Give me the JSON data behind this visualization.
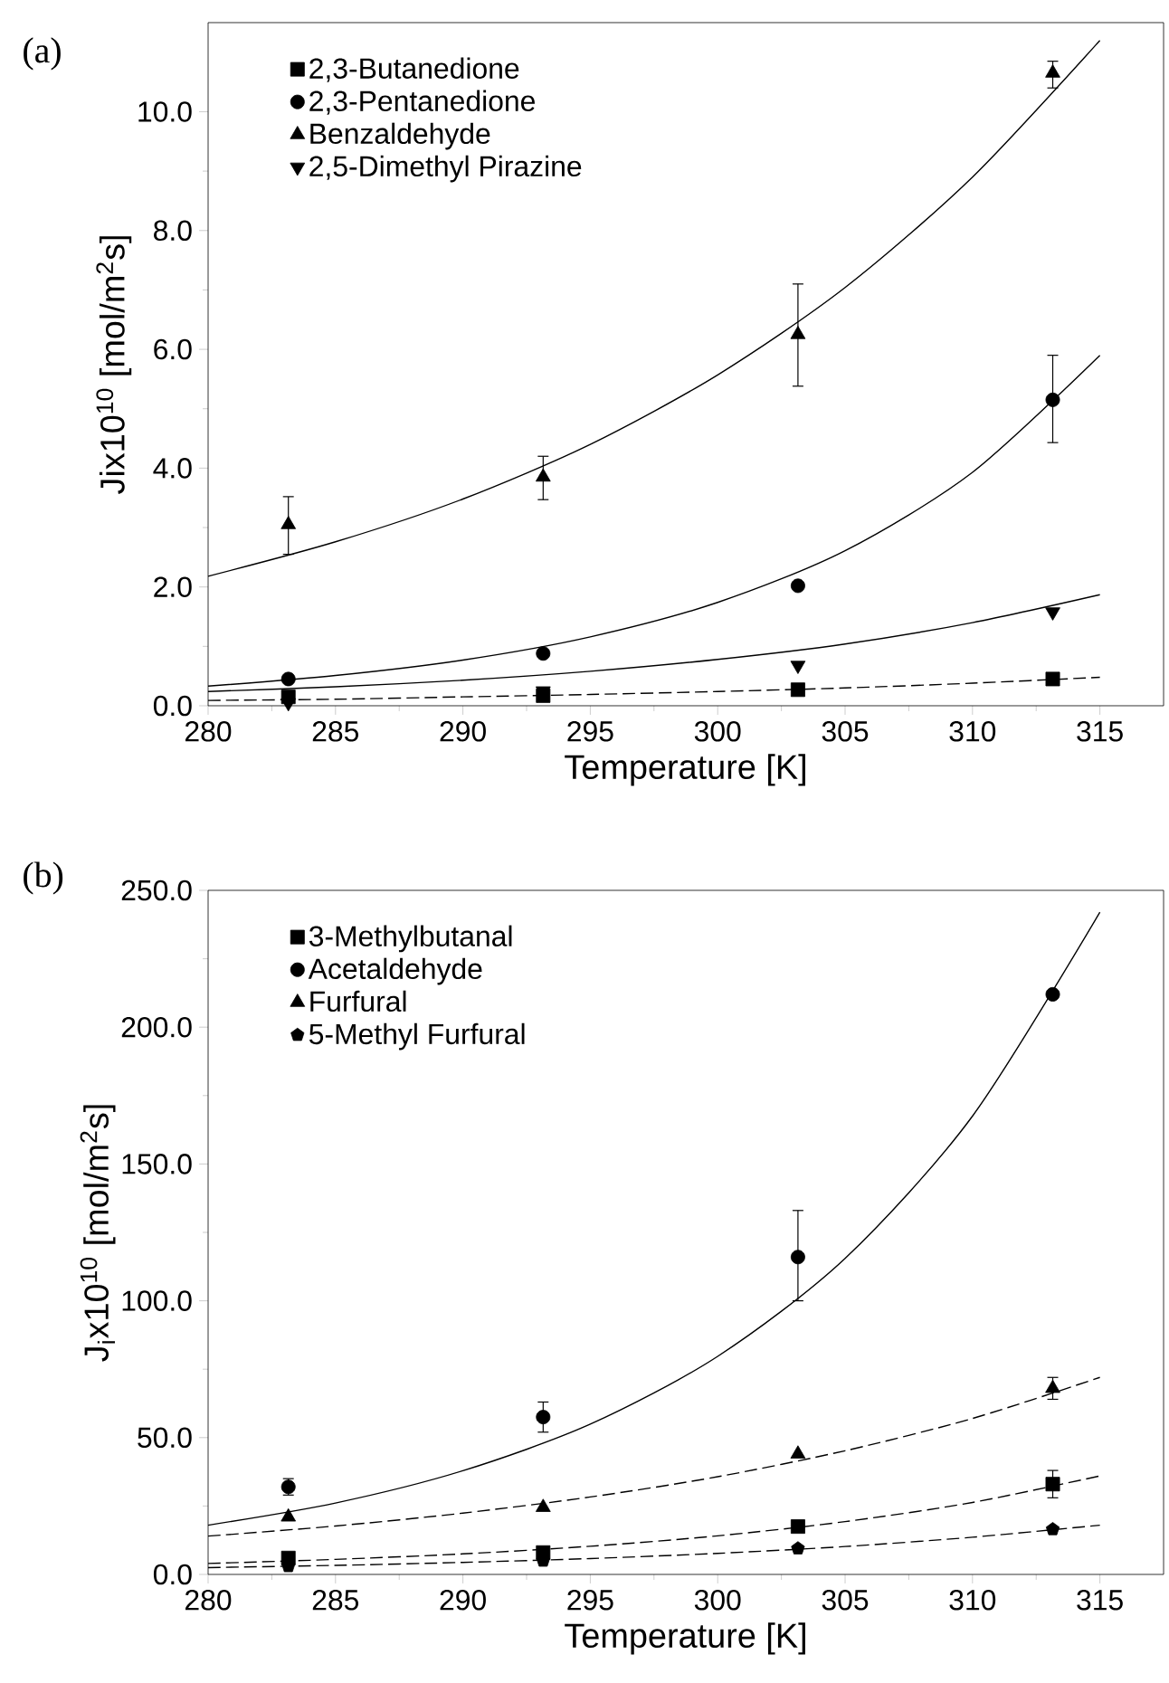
{
  "chart_data": [
    {
      "type": "scatter",
      "annotations": [
        "(a)"
      ],
      "xlabel": "Temperature [K]",
      "ylabel": "Jix10$^{10}$ [mol/m$^{2}$s]",
      "xlim": [
        280,
        317.5
      ],
      "ylim": [
        0,
        11.5
      ],
      "xticks": [
        280,
        285,
        290,
        295,
        300,
        305,
        310,
        315
      ],
      "yticks": [
        {
          "value": 0,
          "label": "0.0"
        },
        {
          "value": 2,
          "label": "2.0"
        },
        {
          "value": 4,
          "label": "4.0"
        },
        {
          "value": 6,
          "label": "6.0"
        },
        {
          "value": 8,
          "label": "8.0"
        },
        {
          "value": 10,
          "label": "10.0"
        }
      ],
      "legend": "top left",
      "x": [
        283.15,
        293.15,
        303.15,
        313.15
      ],
      "series": [
        {
          "name": "2,3-Butanedione",
          "color": "#000000",
          "marker": "square",
          "values": [
            0.15,
            0.17,
            0.27,
            0.45
          ]
        },
        {
          "name": "2,3-Pentanedione",
          "color": "#000000",
          "marker": "circle",
          "values": [
            0.45,
            0.88,
            2.02,
            5.15
          ],
          "errors": [
            null,
            null,
            null,
            [
              4.43,
              5.9
            ]
          ]
        },
        {
          "name": "Benzaldehyde",
          "color": "#000000",
          "marker": "triangle",
          "values": [
            3.05,
            3.85,
            6.25,
            10.65
          ],
          "errors": [
            [
              2.55,
              3.52
            ],
            [
              3.47,
              4.2
            ],
            [
              5.38,
              7.1
            ],
            [
              10.4,
              10.85
            ]
          ]
        },
        {
          "name": "2,5-Dimethyl Pirazine",
          "color": "#000000",
          "marker": "triangle down",
          "values": [
            0.05,
            0.25,
            0.68,
            1.58
          ]
        },
        {
          "type": "line",
          "color": "#000000",
          "line_style": "dashed",
          "x": [
            280,
            285,
            290,
            295,
            300,
            305,
            310,
            315
          ],
          "values": [
            0.09,
            0.11,
            0.15,
            0.19,
            0.24,
            0.3,
            0.38,
            0.48
          ]
        },
        {
          "type": "line",
          "color": "#000000",
          "line_style": "solid",
          "x": [
            280,
            285,
            290,
            295,
            300,
            305,
            310,
            315
          ],
          "values": [
            0.33,
            0.51,
            0.77,
            1.16,
            1.74,
            2.61,
            3.93,
            5.9
          ]
        },
        {
          "type": "line",
          "color": "#000000",
          "line_style": "solid",
          "x": [
            280,
            285,
            290,
            295,
            300,
            305,
            310,
            315
          ],
          "values": [
            2.18,
            2.76,
            3.48,
            4.4,
            5.57,
            7.04,
            8.9,
            11.2
          ]
        },
        {
          "type": "line",
          "color": "#000000",
          "line_style": "solid",
          "x": [
            280,
            285,
            290,
            295,
            300,
            305,
            310,
            315
          ],
          "values": [
            0.24,
            0.32,
            0.43,
            0.58,
            0.78,
            1.04,
            1.4,
            1.87
          ]
        }
      ]
    },
    {
      "type": "scatter",
      "annotations": [
        "(b)"
      ],
      "xlabel": "Temperature [K]",
      "ylabel": "J$_{i}$x10$^{10}$ [mol/m$^{2}$s]",
      "xlim": [
        280,
        317.5
      ],
      "ylim": [
        0,
        250
      ],
      "xticks": [
        280,
        285,
        290,
        295,
        300,
        305,
        310,
        315
      ],
      "yticks": [
        {
          "value": 0,
          "label": "0.0"
        },
        {
          "value": 50,
          "label": "50.0"
        },
        {
          "value": 100,
          "label": "100.0"
        },
        {
          "value": 150,
          "label": "150.0"
        },
        {
          "value": 200,
          "label": "200.0"
        },
        {
          "value": 250,
          "label": "250.0"
        }
      ],
      "legend": "top left",
      "x": [
        283.15,
        293.15,
        303.15,
        313.15
      ],
      "series": [
        {
          "name": "3-Methylbutanal",
          "color": "#000000",
          "marker": "square",
          "values": [
            6,
            8,
            17.5,
            33
          ],
          "errors": [
            null,
            null,
            null,
            [
              28,
              38
            ]
          ]
        },
        {
          "name": "Acetaldehyde",
          "color": "#000000",
          "marker": "circle",
          "values": [
            32,
            57.5,
            116,
            212
          ],
          "errors": [
            [
              29,
              35
            ],
            [
              52,
              63
            ],
            [
              100,
              133
            ],
            null
          ]
        },
        {
          "name": "Furfural",
          "color": "#000000",
          "marker": "triangle",
          "values": [
            21,
            24.5,
            44,
            68
          ],
          "errors": [
            null,
            null,
            null,
            [
              64,
              72
            ]
          ]
        },
        {
          "name": "5-Methyl Furfural",
          "color": "#000000",
          "values": [
            3,
            5,
            9.5,
            16.5
          ]
        },
        {
          "type": "line",
          "color": "#000000",
          "line_style": "dashed",
          "x": [
            280,
            285,
            290,
            295,
            300,
            305,
            310,
            315
          ],
          "values": [
            4,
            5.5,
            7.5,
            10.3,
            14.1,
            19.3,
            26.3,
            36
          ]
        },
        {
          "type": "line",
          "color": "#000000",
          "line_style": "solid",
          "x": [
            280,
            285,
            290,
            295,
            300,
            305,
            310,
            315
          ],
          "values": [
            18,
            26.1,
            37.9,
            54.9,
            79.7,
            115.5,
            167.5,
            242
          ]
        },
        {
          "type": "line",
          "color": "#000000",
          "line_style": "dashed",
          "x": [
            280,
            285,
            290,
            295,
            300,
            305,
            310,
            315
          ],
          "values": [
            14,
            17.7,
            22.4,
            28.3,
            35.7,
            45.2,
            57,
            72
          ]
        },
        {
          "type": "line",
          "color": "#000000",
          "line_style": "dashed",
          "x": [
            280,
            285,
            290,
            295,
            300,
            305,
            310,
            315
          ],
          "values": [
            2.5,
            3.3,
            4.4,
            5.8,
            7.7,
            10.2,
            13.6,
            18
          ]
        }
      ]
    }
  ]
}
